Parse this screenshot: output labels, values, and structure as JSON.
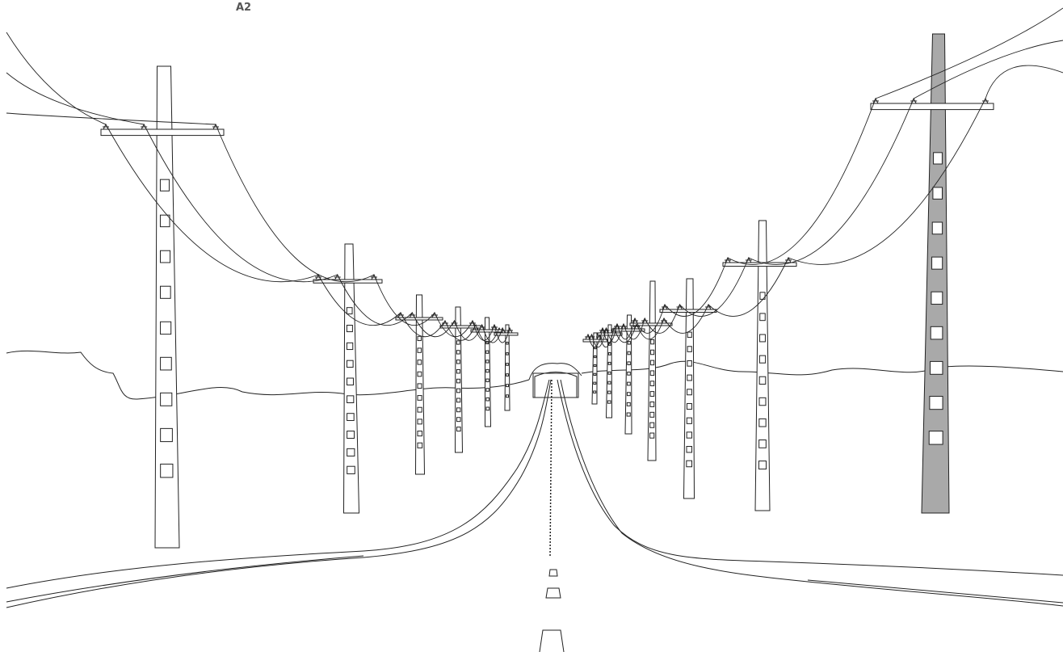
{
  "label": "A2"
}
